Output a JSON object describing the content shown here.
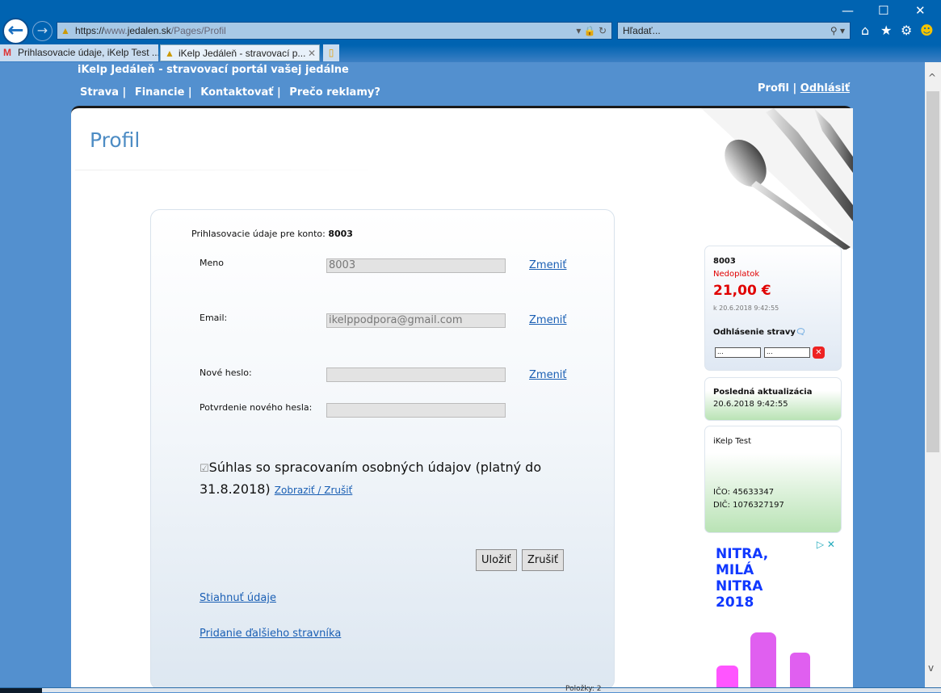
{
  "browser": {
    "url_scheme": "https://",
    "url_host": "www.jedalen.sk",
    "url_path": "/Pages/Profil",
    "search_placeholder": "Hľadať...",
    "tabs": [
      {
        "label": "Prihlasovacie údaje, iKelp Test ..."
      },
      {
        "label": "iKelp Jedáleň - stravovací p...",
        "active": true
      }
    ],
    "status": "Položky: 2"
  },
  "site": {
    "title": "iKelp Jedáleň - stravovací portál vašej jedálne",
    "nav": [
      "Strava |",
      "Financie |",
      "Kontaktovať |",
      "Prečo reklamy?"
    ],
    "profile_link": "Profil",
    "separator": "|",
    "logout_link": "Odhlásiť"
  },
  "page": {
    "title": "Profil"
  },
  "form": {
    "account_label": "Prihlasovacie údaje pre konto:",
    "account": "8003",
    "fields": [
      {
        "label": "Meno",
        "value": "8003",
        "action": "Zmeniť"
      },
      {
        "label": "Email:",
        "value": "ikelppodpora@gmail.com",
        "action": "Zmeniť"
      },
      {
        "label": "Nové heslo:",
        "value": "",
        "action": "Zmeniť"
      },
      {
        "label": "Potvrdenie nového hesla:",
        "value": ""
      }
    ],
    "consent": {
      "checked": true,
      "text1": "Súhlas so spracovaním osobných údajov (platný do",
      "text2": "31.8.2018)",
      "link": "Zobraziť / Zrušiť"
    },
    "save": "Uložiť",
    "cancel": "Zrušiť",
    "download_link": "Stiahnuť údaje",
    "add_link": "Pridanie ďalšieho stravníka"
  },
  "sidebar": {
    "account": "8003",
    "status": "Nedoplatok",
    "amount": "21,00 €",
    "as_of": "k 20.6.2018 9:42:55",
    "cancel_meals": "Odhlásenie stravy",
    "from_placeholder": "...",
    "to_placeholder": "...",
    "last_update_label": "Posledná aktualizácia",
    "last_update": "20.6.2018 9:42:55",
    "company": "iKelp Test",
    "ico": "IČO: 45633347",
    "dic": "DIČ: 1076327197"
  },
  "ad": {
    "text": [
      "NITRA,",
      "MILÁ",
      "NITRA",
      "2018"
    ]
  },
  "colors": {
    "accent": "#4d8cc4",
    "link": "#1a5fb4",
    "debt": "#e00000",
    "page_bg": "#5390cf"
  }
}
